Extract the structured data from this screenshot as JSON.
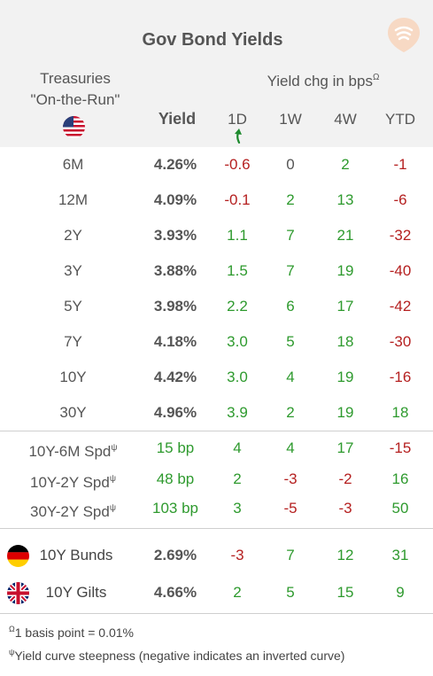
{
  "title": "Gov Bond Yields",
  "header": {
    "treasuries_line1": "Treasuries",
    "treasuries_line2": "\"On-the-Run\"",
    "yield_col": "Yield",
    "chg_label": "Yield chg in bps",
    "chg_mark": "Ω",
    "col_1d": "1D",
    "col_1w": "1W",
    "col_4w": "4W",
    "col_ytd": "YTD"
  },
  "colors": {
    "positive": "#2e9a2e",
    "negative": "#b52020",
    "header_bg": "#f2f2f2"
  },
  "icons": {
    "logo": "signal-logo-icon",
    "sort": "curved-arrow-icon",
    "us": "us-flag-icon",
    "de": "germany-flag-icon",
    "uk": "uk-flag-icon"
  },
  "chart_data": {
    "type": "table",
    "columns": [
      "Yield",
      "1D",
      "1W",
      "4W",
      "YTD"
    ],
    "treasuries": [
      {
        "label": "6M",
        "yield": "4.26%",
        "d1": "-0.6",
        "w1": "0",
        "w4": "2",
        "ytd": "-1"
      },
      {
        "label": "12M",
        "yield": "4.09%",
        "d1": "-0.1",
        "w1": "2",
        "w4": "13",
        "ytd": "-6"
      },
      {
        "label": "2Y",
        "yield": "3.93%",
        "d1": "1.1",
        "w1": "7",
        "w4": "21",
        "ytd": "-32"
      },
      {
        "label": "3Y",
        "yield": "3.88%",
        "d1": "1.5",
        "w1": "7",
        "w4": "19",
        "ytd": "-40"
      },
      {
        "label": "5Y",
        "yield": "3.98%",
        "d1": "2.2",
        "w1": "6",
        "w4": "17",
        "ytd": "-42"
      },
      {
        "label": "7Y",
        "yield": "4.18%",
        "d1": "3.0",
        "w1": "5",
        "w4": "18",
        "ytd": "-30"
      },
      {
        "label": "10Y",
        "yield": "4.42%",
        "d1": "3.0",
        "w1": "4",
        "w4": "19",
        "ytd": "-16"
      },
      {
        "label": "30Y",
        "yield": "4.96%",
        "d1": "3.9",
        "w1": "2",
        "w4": "19",
        "ytd": "18"
      }
    ],
    "spreads": [
      {
        "label": "10Y-6M Spd",
        "mark": "ψ",
        "yield": "15 bp",
        "d1": "4",
        "w1": "4",
        "w4": "17",
        "ytd": "-15"
      },
      {
        "label": "10Y-2Y Spd",
        "mark": "ψ",
        "yield": "48 bp",
        "d1": "2",
        "w1": "-3",
        "w4": "-2",
        "ytd": "16"
      },
      {
        "label": "30Y-2Y Spd",
        "mark": "ψ",
        "yield": "103 bp",
        "d1": "3",
        "w1": "-5",
        "w4": "-3",
        "ytd": "50"
      }
    ],
    "bonds": [
      {
        "label": "10Y Bunds",
        "flag": "de",
        "yield": "2.69%",
        "d1": "-3",
        "w1": "7",
        "w4": "12",
        "ytd": "31"
      },
      {
        "label": "10Y Gilts",
        "flag": "uk",
        "yield": "4.66%",
        "d1": "2",
        "w1": "5",
        "w4": "15",
        "ytd": "9"
      }
    ]
  },
  "footnotes": {
    "note1_mark": "Ω",
    "note1": "1 basis point = 0.01%",
    "note2_mark": "ψ",
    "note2": "Yield curve steepness (negative indicates an inverted curve)"
  }
}
